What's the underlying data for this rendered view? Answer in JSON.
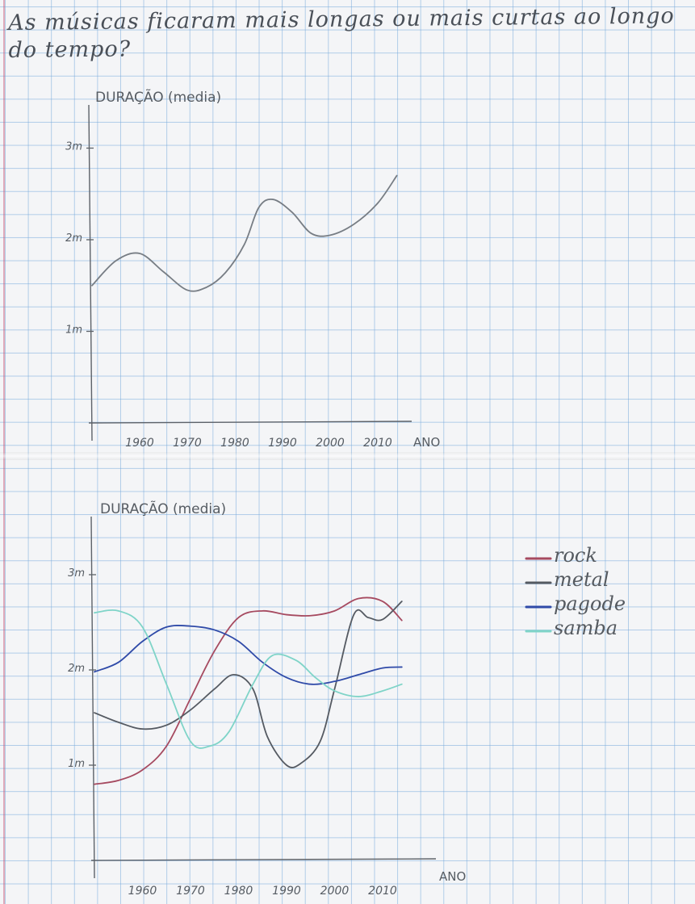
{
  "page": {
    "title": "As músicas ficaram mais longas ou mais curtas ao longo do tempo?"
  },
  "chart_data": [
    {
      "type": "line",
      "ylabel": "DURAÇÃO (media)",
      "xlabel": "ANO",
      "x_ticks": [
        "1960",
        "1970",
        "1980",
        "1990",
        "2000",
        "2010"
      ],
      "x_tick_values": [
        1960,
        1970,
        1980,
        1990,
        2000,
        2010
      ],
      "y_ticks": [
        "1m",
        "2m",
        "3m"
      ],
      "y_tick_values": [
        1,
        2,
        3
      ],
      "xlim": [
        1950,
        2016
      ],
      "ylim": [
        0,
        3.5
      ],
      "grid": false,
      "series": [
        {
          "color": "#777d84",
          "x": [
            1950,
            1955,
            1960,
            1965,
            1970,
            1974,
            1978,
            1982,
            1985,
            1988,
            1992,
            1996,
            2000,
            2005,
            2010,
            2014
          ],
          "y": [
            1.5,
            1.77,
            1.85,
            1.65,
            1.45,
            1.48,
            1.64,
            1.95,
            2.35,
            2.44,
            2.3,
            2.07,
            2.05,
            2.17,
            2.4,
            2.7
          ]
        }
      ]
    },
    {
      "type": "line",
      "ylabel": "DURAÇÃO (media)",
      "xlabel": "ANO",
      "x_ticks": [
        "1960",
        "1970",
        "1980",
        "1990",
        "2000",
        "2010"
      ],
      "x_tick_values": [
        1960,
        1970,
        1980,
        1990,
        2000,
        2010
      ],
      "y_ticks": [
        "1m",
        "2m",
        "3m"
      ],
      "y_tick_values": [
        1,
        2,
        3
      ],
      "xlim": [
        1950,
        2016
      ],
      "ylim": [
        0,
        3.5
      ],
      "grid": false,
      "legend": "right",
      "series": [
        {
          "name": "rock",
          "color": "#a64a60",
          "x": [
            1950,
            1955,
            1960,
            1965,
            1970,
            1975,
            1980,
            1985,
            1990,
            1995,
            2000,
            2005,
            2010,
            2014
          ],
          "y": [
            0.8,
            0.84,
            0.95,
            1.2,
            1.7,
            2.2,
            2.55,
            2.62,
            2.58,
            2.57,
            2.62,
            2.75,
            2.72,
            2.52
          ]
        },
        {
          "name": "metal",
          "color": "#555a62",
          "x": [
            1950,
            1955,
            1960,
            1965,
            1970,
            1975,
            1979,
            1983,
            1986,
            1990,
            1993,
            1997,
            2000,
            2004,
            2007,
            2010,
            2014
          ],
          "y": [
            1.55,
            1.45,
            1.38,
            1.42,
            1.58,
            1.8,
            1.95,
            1.8,
            1.3,
            1.0,
            1.02,
            1.25,
            1.8,
            2.58,
            2.55,
            2.53,
            2.72
          ]
        },
        {
          "name": "pagode",
          "color": "#2f4aa8",
          "x": [
            1950,
            1955,
            1960,
            1965,
            1970,
            1975,
            1980,
            1985,
            1990,
            1995,
            2000,
            2005,
            2010,
            2014
          ],
          "y": [
            1.98,
            2.08,
            2.3,
            2.45,
            2.46,
            2.42,
            2.3,
            2.08,
            1.92,
            1.85,
            1.88,
            1.95,
            2.02,
            2.03
          ]
        },
        {
          "name": "samba",
          "color": "#7fd4c8",
          "x": [
            1950,
            1955,
            1960,
            1965,
            1970,
            1974,
            1978,
            1983,
            1987,
            1992,
            1996,
            2000,
            2005,
            2010,
            2014
          ],
          "y": [
            2.6,
            2.62,
            2.45,
            1.85,
            1.25,
            1.2,
            1.35,
            1.85,
            2.15,
            2.1,
            1.92,
            1.78,
            1.72,
            1.78,
            1.85
          ]
        }
      ]
    }
  ]
}
